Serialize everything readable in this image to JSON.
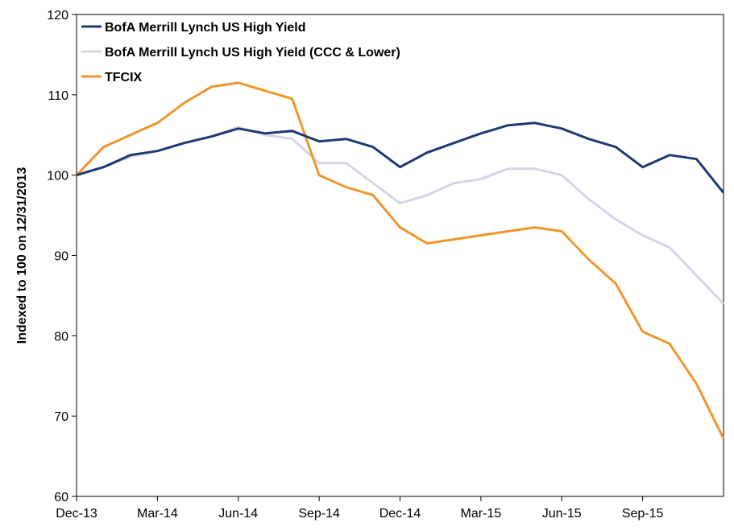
{
  "chart_data": {
    "type": "line",
    "title": "",
    "xlabel": "",
    "ylabel": "Indexed to 100 on 12/31/2013",
    "ylim": [
      60,
      120
    ],
    "yticks": [
      60,
      70,
      80,
      90,
      100,
      110,
      120
    ],
    "xticks": [
      "Dec-13",
      "Mar-14",
      "Jun-14",
      "Sep-14",
      "Dec-14",
      "Mar-15",
      "Jun-15",
      "Sep-15"
    ],
    "grid": false,
    "legend_position": "top-left",
    "x": [
      "Dec-13",
      "Jan-14",
      "Feb-14",
      "Mar-14",
      "Apr-14",
      "May-14",
      "Jun-14",
      "Jul-14",
      "Aug-14",
      "Sep-14",
      "Oct-14",
      "Nov-14",
      "Dec-14",
      "Jan-15",
      "Feb-15",
      "Mar-15",
      "Apr-15",
      "May-15",
      "Jun-15",
      "Jul-15",
      "Aug-15",
      "Sep-15",
      "Oct-15",
      "Nov-15",
      "Dec-15"
    ],
    "series": [
      {
        "name": "BofA Merrill Lynch US High Yield",
        "color": "#1f3a73",
        "values": [
          100.0,
          101.0,
          102.5,
          103.0,
          104.0,
          104.8,
          105.8,
          105.2,
          105.5,
          104.2,
          104.5,
          103.5,
          101.0,
          102.8,
          104.0,
          105.2,
          106.2,
          106.5,
          105.8,
          104.5,
          103.5,
          101.0,
          102.5,
          102.0,
          97.8
        ]
      },
      {
        "name": "BofA Merrill Lynch US High Yield (CCC & Lower)",
        "color": "#d4d6e8",
        "values": [
          100.0,
          101.0,
          102.3,
          103.0,
          104.0,
          104.8,
          106.0,
          105.0,
          104.5,
          101.5,
          101.5,
          99.0,
          96.5,
          97.5,
          99.0,
          99.5,
          100.8,
          100.8,
          100.0,
          97.0,
          94.5,
          92.5,
          91.0,
          87.5,
          84.0
        ]
      },
      {
        "name": "TFCIX",
        "color": "#f0962b",
        "values": [
          100.0,
          103.5,
          105.0,
          106.5,
          109.0,
          111.0,
          111.5,
          110.5,
          109.5,
          100.0,
          98.5,
          97.5,
          93.5,
          91.5,
          92.0,
          92.5,
          93.0,
          93.5,
          93.0,
          89.5,
          86.5,
          80.5,
          79.0,
          74.0,
          67.2
        ]
      }
    ]
  }
}
